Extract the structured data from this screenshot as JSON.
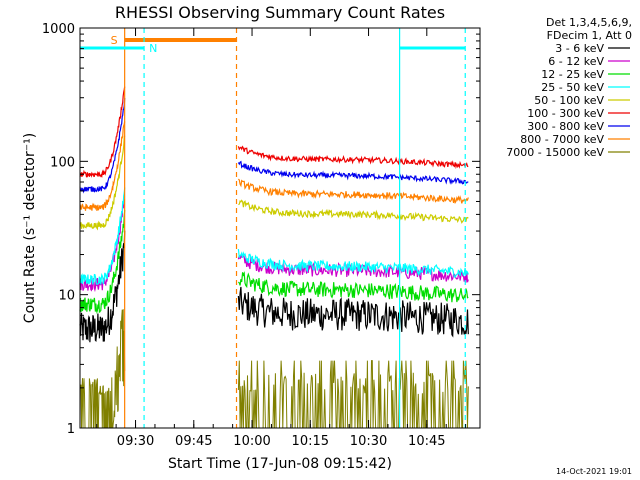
{
  "chart_data": {
    "type": "line",
    "title": "RHESSI Observing Summary Count Rates",
    "xlabel": "Start Time (17-Jun-08 09:15:42)",
    "ylabel": "Count Rate (s⁻¹ detector⁻¹)",
    "yscale": "log",
    "ylim": [
      1,
      1000
    ],
    "xlim_minutes": [
      0,
      103
    ],
    "x_ticks": [
      {
        "label": "09:30",
        "minutes": 14.3
      },
      {
        "label": "09:45",
        "minutes": 29.3
      },
      {
        "label": "10:00",
        "minutes": 44.3
      },
      {
        "label": "10:15",
        "minutes": 59.3
      },
      {
        "label": "10:30",
        "minutes": 74.3
      },
      {
        "label": "10:45",
        "minutes": 89.3
      }
    ],
    "y_ticks": [
      {
        "label": "1",
        "value": 1
      },
      {
        "label": "10",
        "value": 10
      },
      {
        "label": "100",
        "value": 100
      },
      {
        "label": "1000",
        "value": 1000
      }
    ],
    "legend_header": [
      "Det 1,3,4,5,6,9,",
      "FDecim 1, Att 0"
    ],
    "legend_position": "right",
    "series": [
      {
        "name": "3 - 6 keV",
        "color": "#000000",
        "level_before": 5.5,
        "level_after": 6.5,
        "noise": 0.25
      },
      {
        "name": "6 - 12 keV",
        "color": "#cc00cc",
        "level_before": 12,
        "level_after": 14,
        "noise": 0.1
      },
      {
        "name": "12 - 25 keV",
        "color": "#00dd00",
        "level_before": 8.5,
        "level_after": 10,
        "noise": 0.12
      },
      {
        "name": "25 - 50 keV",
        "color": "#00ffff",
        "level_before": 13,
        "level_after": 15,
        "noise": 0.08
      },
      {
        "name": "50 - 100 keV",
        "color": "#cccc00",
        "level_before": 33,
        "level_after": 37,
        "noise": 0.05
      },
      {
        "name": "100 - 300 keV",
        "color": "#ee0000",
        "level_before": 80,
        "level_after": 95,
        "noise": 0.04
      },
      {
        "name": "300 - 800 keV",
        "color": "#0000ee",
        "level_before": 62,
        "level_after": 72,
        "noise": 0.04
      },
      {
        "name": "800 - 7000 keV",
        "color": "#ff8000",
        "level_before": 45,
        "level_after": 52,
        "noise": 0.05
      },
      {
        "name": "7000 - 15000 keV",
        "color": "#808000",
        "level_before": 1.6,
        "level_after": 1.6,
        "noise": 0.35
      }
    ],
    "annotations": {
      "saa_label": "S",
      "night_label": "N",
      "saa_color": "#ff8000",
      "night_color": "#00ffff",
      "saa_minutes": [
        11.5,
        40.3
      ],
      "night_minutes": [
        [
          0,
          16.5
        ],
        [
          82.3,
          99.2
        ]
      ]
    },
    "timestamp": "14-Oct-2021 19:01"
  }
}
